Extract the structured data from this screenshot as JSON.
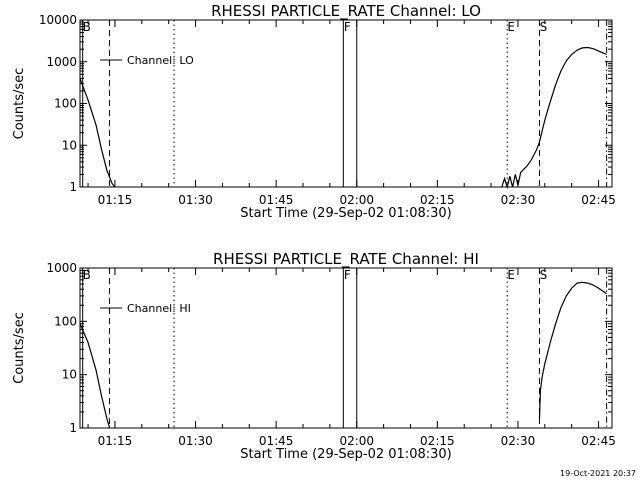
{
  "chart_data": [
    {
      "type": "line",
      "title": "RHESSI PARTICLE_RATE Channel: LO",
      "xlabel": "Start Time (29-Sep-02 01:08:30)",
      "ylabel": "Counts/sec",
      "yscale": "log",
      "ylim": [
        1,
        10000
      ],
      "yticks": [
        1,
        10,
        100,
        1000,
        10000
      ],
      "ytick_labels": [
        "1",
        "10",
        "100",
        "1000",
        "10000"
      ],
      "xlim": [
        "01:08:30",
        "02:47:30"
      ],
      "xtick_labels": [
        "01:15",
        "01:30",
        "01:45",
        "02:00",
        "02:15",
        "02:30",
        "02:45"
      ],
      "legend": {
        "label": "Channel: LO",
        "position": "top-left"
      },
      "grid": false,
      "markers": [
        {
          "label": "B",
          "time": "01:09:00",
          "style": "solid"
        },
        {
          "label": "",
          "time": "01:14:00",
          "style": "dashed"
        },
        {
          "label": "",
          "time": "01:26:00",
          "style": "dotted"
        },
        {
          "label": "F",
          "time": "01:57:30",
          "style": "solid"
        },
        {
          "label": "",
          "time": "02:00:00",
          "style": "solid"
        },
        {
          "label": "E",
          "time": "02:28:00",
          "style": "dotted"
        },
        {
          "label": "S",
          "time": "02:34:00",
          "style": "dashed"
        },
        {
          "label": "",
          "time": "02:46:30",
          "style": "dashdot"
        }
      ],
      "series": [
        {
          "segments": [
            {
              "x": [
                "01:08:30",
                "01:10:00",
                "01:11:30",
                "01:12:30",
                "01:13:30",
                "01:14:30",
                "01:15:00"
              ],
              "y": [
                400,
                120,
                30,
                8,
                2.5,
                1.2,
                1
              ]
            },
            {
              "x": [
                "02:27:00",
                "02:27:30",
                "02:28:00",
                "02:28:30",
                "02:29:00",
                "02:29:30",
                "02:30:00",
                "02:30:30",
                "02:31:00",
                "02:31:30",
                "02:32:00",
                "02:32:30",
                "02:33:00",
                "02:33:30",
                "02:34:00",
                "02:34:30",
                "02:35:00",
                "02:36:00",
                "02:37:00",
                "02:38:00",
                "02:39:00",
                "02:40:00",
                "02:41:00",
                "02:42:00",
                "02:43:00",
                "02:44:00",
                "02:45:00",
                "02:46:30"
              ],
              "y": [
                1,
                1.6,
                1,
                1.8,
                1,
                2,
                1.1,
                2.2,
                2.6,
                3,
                3.6,
                4.5,
                6,
                8,
                12,
                22,
                40,
                110,
                280,
                600,
                1050,
                1500,
                1900,
                2150,
                2200,
                2050,
                1800,
                1500
              ]
            }
          ]
        }
      ]
    },
    {
      "type": "line",
      "title": "RHESSI PARTICLE_RATE Channel: HI",
      "xlabel": "Start Time (29-Sep-02 01:08:30)",
      "ylabel": "Counts/sec",
      "yscale": "log",
      "ylim": [
        1,
        1000
      ],
      "yticks": [
        1,
        10,
        100,
        1000
      ],
      "ytick_labels": [
        "1",
        "10",
        "100",
        "1000"
      ],
      "xlim": [
        "01:08:30",
        "02:47:30"
      ],
      "xtick_labels": [
        "01:15",
        "01:30",
        "01:45",
        "02:00",
        "02:15",
        "02:30",
        "02:45"
      ],
      "legend": {
        "label": "Channel: HI",
        "position": "top-left"
      },
      "grid": false,
      "markers": [
        {
          "label": "B",
          "time": "01:09:00",
          "style": "solid"
        },
        {
          "label": "",
          "time": "01:14:00",
          "style": "dashed"
        },
        {
          "label": "",
          "time": "01:26:00",
          "style": "dotted"
        },
        {
          "label": "F",
          "time": "01:57:30",
          "style": "solid"
        },
        {
          "label": "",
          "time": "02:00:00",
          "style": "solid"
        },
        {
          "label": "E",
          "time": "02:28:00",
          "style": "dotted"
        },
        {
          "label": "S",
          "time": "02:34:00",
          "style": "dashed"
        },
        {
          "label": "",
          "time": "02:46:30",
          "style": "dashdot"
        }
      ],
      "series": [
        {
          "segments": [
            {
              "x": [
                "01:08:30",
                "01:10:00",
                "01:11:30",
                "01:12:30",
                "01:13:30",
                "01:14:00"
              ],
              "y": [
                90,
                40,
                12,
                4,
                1.5,
                1
              ]
            },
            {
              "x": [
                "02:34:00",
                "02:34:10",
                "02:34:30",
                "02:35:00",
                "02:36:00",
                "02:37:00",
                "02:38:00",
                "02:39:00",
                "02:40:00",
                "02:41:00",
                "02:42:00",
                "02:43:00",
                "02:44:00",
                "02:45:00",
                "02:46:30"
              ],
              "y": [
                1.5,
                5,
                9,
                16,
                40,
                90,
                180,
                300,
                420,
                520,
                540,
                520,
                480,
                420,
                330
              ]
            }
          ]
        }
      ]
    }
  ],
  "timestamp": "19-Oct-2021 20:37"
}
